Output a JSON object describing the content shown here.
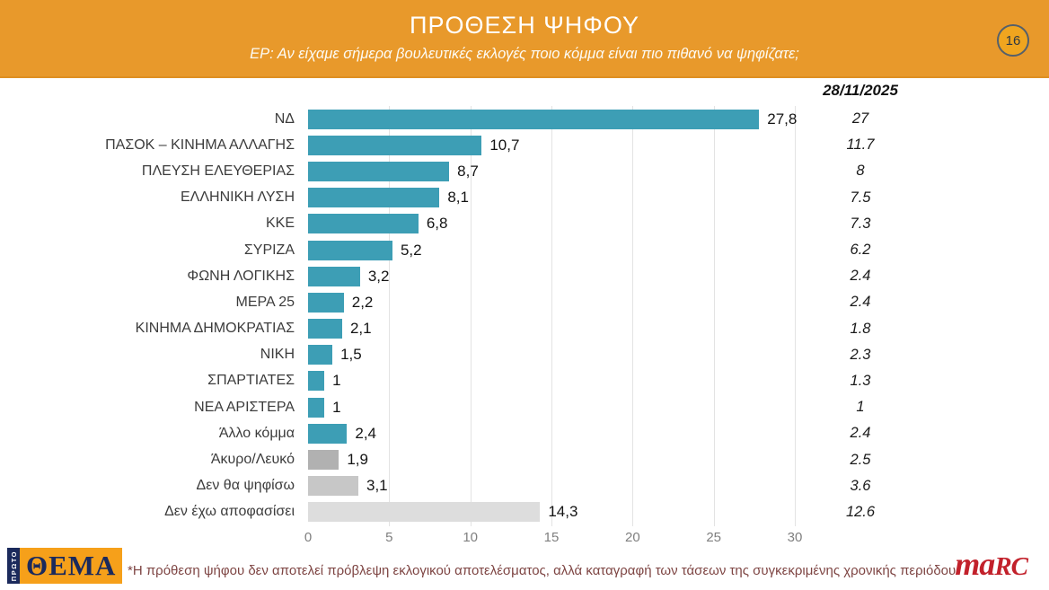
{
  "header": {
    "title": "ΠΡΟΘΕΣΗ ΨΗΦΟΥ",
    "subtitle": "ΕΡ: Αν είχαμε σήμερα βουλευτικές εκλογές ποιο κόμμα είναι πιο πιθανό να ψηφίζατε;",
    "page_number": "16"
  },
  "chart_data": {
    "type": "bar",
    "orientation": "horizontal",
    "title": "ΠΡΟΘΕΣΗ ΨΗΦΟΥ",
    "date_column_header": "28/11/2025",
    "categories": [
      "ΝΔ",
      "ΠΑΣΟΚ – ΚΙΝΗΜΑ ΑΛΛΑΓΗΣ",
      "ΠΛΕΥΣΗ ΕΛΕΥΘΕΡΙΑΣ",
      "ΕΛΛΗΝΙΚΗ ΛΥΣΗ",
      "ΚΚΕ",
      "ΣΥΡΙΖΑ",
      "ΦΩΝΗ ΛΟΓΙΚΗΣ",
      "ΜΕΡΑ 25",
      "ΚΙΝΗΜΑ ΔΗΜΟΚΡΑΤΙΑΣ",
      "ΝΙΚΗ",
      "ΣΠΑΡΤΙΑΤΕΣ",
      "ΝΕΑ ΑΡΙΣΤΕΡΑ",
      "Άλλο κόμμα",
      "Άκυρο/Λευκό",
      "Δεν θα ψηφίσω",
      "Δεν έχω αποφασίσει"
    ],
    "series": [
      {
        "id": "current_bars",
        "values": [
          27.8,
          10.7,
          8.7,
          8.1,
          6.8,
          5.2,
          3.2,
          2.2,
          2.1,
          1.5,
          1,
          1,
          2.4,
          1.9,
          3.1,
          14.3
        ],
        "display": [
          "27,8",
          "10,7",
          "8,7",
          "8,1",
          "6,8",
          "5,2",
          "3,2",
          "2,2",
          "2,1",
          "1,5",
          "1",
          "1",
          "2,4",
          "1,9",
          "3,1",
          "14,3"
        ]
      },
      {
        "id": "reference_column",
        "label": "28/11/2025",
        "values": [
          27,
          11.7,
          8,
          7.5,
          7.3,
          6.2,
          2.4,
          2.4,
          1.8,
          2.3,
          1.3,
          1,
          2.4,
          2.5,
          3.6,
          12.6
        ],
        "display": [
          "27",
          "11.7",
          "8",
          "7.5",
          "7.3",
          "6.2",
          "2.4",
          "2.4",
          "1.8",
          "2.3",
          "1.3",
          "1",
          "2.4",
          "2.5",
          "3.6",
          "12.6"
        ]
      }
    ],
    "xlim": [
      0,
      30
    ],
    "x_ticks": [
      0,
      5,
      10,
      15,
      20,
      25,
      30
    ],
    "grid": true,
    "legend": false,
    "bar_colors": [
      "#3D9EB5",
      "#3D9EB5",
      "#3D9EB5",
      "#3D9EB5",
      "#3D9EB5",
      "#3D9EB5",
      "#3D9EB5",
      "#3D9EB5",
      "#3D9EB5",
      "#3D9EB5",
      "#3D9EB5",
      "#3D9EB5",
      "#3D9EB5",
      "#B1B1B1",
      "#C7C7C7",
      "#DDDDDD"
    ]
  },
  "footer": {
    "thema_logo": {
      "vertical_text": "ΠΡΩΤΟ",
      "main_text": "ΘΕΜΑ"
    },
    "footnote": "*Η πρόθεση ψήφου δεν αποτελεί πρόβλεψη εκλογικού αποτελέσματος, αλλά καταγραφή των τάσεων της συγκεκριμένης χρονικής περιόδου.",
    "marc_logo": {
      "part1": "ma",
      "part2": "RC"
    }
  },
  "colors": {
    "header_bg": "#E8992B",
    "badge_bg": "#F0A51F",
    "badge_border": "#55606B",
    "bar_teal": "#3D9EB5",
    "bar_gray_invalid": "#B1B1B1",
    "bar_gray_wont_vote": "#C7C7C7",
    "bar_gray_undecided": "#DDDDDD",
    "gridline": "#E3E3E3",
    "footnote_text": "#7E4543",
    "marc_red": "#C2212B",
    "thema_navy": "#1B2A5C",
    "thema_orange": "#F6A01A"
  }
}
